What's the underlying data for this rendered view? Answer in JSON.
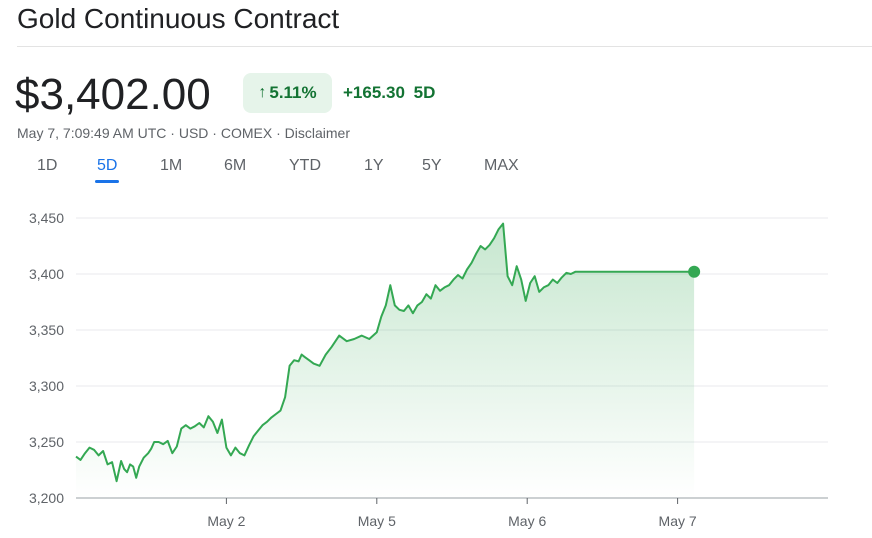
{
  "header": {
    "title": "Gold Continuous Contract",
    "price": "$3,402.00",
    "change_percent": "5.11%",
    "change_abs": "+165.30",
    "change_period": "5D",
    "meta_time": "May 7, 7:09:49 AM UTC",
    "meta_currency": "USD",
    "meta_exchange": "COMEX",
    "meta_disclaimer": "Disclaimer",
    "separator": " · ",
    "up_icon": "arrow-up-icon"
  },
  "tabs": [
    {
      "label": "1D",
      "active": false
    },
    {
      "label": "5D",
      "active": true
    },
    {
      "label": "1M",
      "active": false
    },
    {
      "label": "6M",
      "active": false
    },
    {
      "label": "YTD",
      "active": false
    },
    {
      "label": "1Y",
      "active": false
    },
    {
      "label": "5Y",
      "active": false
    },
    {
      "label": "MAX",
      "active": false
    }
  ],
  "colors": {
    "line": "#34a853",
    "accent_up": "#137333",
    "chip_bg": "#e6f4ea",
    "tab_active": "#1a73e8"
  },
  "chart_data": {
    "type": "area",
    "title": "",
    "xlabel": "",
    "ylabel": "",
    "ylim": [
      3200,
      3450
    ],
    "yticks": [
      3200,
      3250,
      3300,
      3350,
      3400,
      3450
    ],
    "ytick_labels": [
      "3,200",
      "3,250",
      "3,300",
      "3,350",
      "3,400",
      "3,450"
    ],
    "xlim": [
      0,
      5
    ],
    "xticks": [
      1,
      2,
      3,
      4
    ],
    "xtick_labels": [
      "May 2",
      "May 5",
      "May 6",
      "May 7"
    ],
    "grid": true,
    "series": [
      {
        "x": [
          0.0,
          0.03,
          0.06,
          0.09,
          0.12,
          0.15,
          0.18,
          0.21,
          0.24,
          0.27,
          0.3,
          0.32,
          0.34,
          0.36,
          0.38,
          0.4,
          0.42,
          0.45,
          0.48,
          0.5,
          0.52,
          0.55,
          0.58,
          0.61,
          0.64,
          0.67,
          0.7,
          0.73,
          0.76,
          0.79,
          0.82,
          0.85,
          0.88,
          0.91,
          0.94,
          0.97,
          1.0,
          1.03,
          1.06,
          1.09,
          1.12,
          1.15,
          1.18,
          1.21,
          1.24,
          1.27,
          1.3,
          1.33,
          1.36,
          1.39,
          1.42,
          1.45,
          1.48,
          1.5,
          1.52,
          1.55,
          1.58,
          1.62,
          1.66,
          1.7,
          1.75,
          1.8,
          1.85,
          1.9,
          1.95,
          2.0,
          2.03,
          2.06,
          2.09,
          2.12,
          2.15,
          2.18,
          2.21,
          2.24,
          2.27,
          2.3,
          2.33,
          2.36,
          2.39,
          2.42,
          2.45,
          2.48,
          2.51,
          2.54,
          2.57,
          2.6,
          2.63,
          2.66,
          2.69,
          2.72,
          2.75,
          2.78,
          2.81,
          2.84,
          2.87,
          2.9,
          2.93,
          2.96,
          2.99,
          3.02,
          3.05,
          3.08,
          3.11,
          3.14,
          3.17,
          3.2,
          3.23,
          3.26,
          3.29,
          3.32,
          3.35,
          3.38,
          3.41,
          3.44,
          3.47,
          3.5,
          3.53,
          3.56,
          3.59,
          3.62,
          3.65,
          3.68,
          3.71,
          3.74,
          3.77,
          3.8,
          3.83,
          3.86,
          3.89,
          3.92,
          3.95,
          3.98,
          4.01,
          4.04,
          4.07,
          4.11
        ],
        "values": [
          3237,
          3234,
          3240,
          3245,
          3243,
          3238,
          3242,
          3230,
          3232,
          3215,
          3233,
          3226,
          3223,
          3230,
          3228,
          3218,
          3228,
          3236,
          3240,
          3244,
          3250,
          3250,
          3248,
          3251,
          3240,
          3246,
          3262,
          3265,
          3262,
          3264,
          3267,
          3263,
          3273,
          3268,
          3258,
          3270,
          3245,
          3238,
          3245,
          3240,
          3238,
          3247,
          3255,
          3260,
          3265,
          3268,
          3272,
          3275,
          3278,
          3290,
          3318,
          3323,
          3322,
          3328,
          3326,
          3323,
          3320,
          3318,
          3328,
          3335,
          3345,
          3340,
          3342,
          3345,
          3342,
          3348,
          3362,
          3372,
          3390,
          3372,
          3368,
          3367,
          3372,
          3365,
          3372,
          3375,
          3382,
          3378,
          3390,
          3385,
          3388,
          3390,
          3395,
          3399,
          3396,
          3404,
          3410,
          3418,
          3425,
          3422,
          3426,
          3432,
          3440,
          3445,
          3398,
          3390,
          3407,
          3395,
          3376,
          3392,
          3398,
          3384,
          3388,
          3390,
          3395,
          3392,
          3397,
          3401,
          3400,
          3402,
          3402,
          3402,
          3402,
          3402,
          3402,
          3402,
          3402,
          3402,
          3402,
          3402,
          3402,
          3402,
          3402,
          3402,
          3402,
          3402,
          3402,
          3402,
          3402,
          3402,
          3402,
          3402,
          3402,
          3402,
          3402,
          3402
        ],
        "last_value": 3402.0
      }
    ]
  }
}
